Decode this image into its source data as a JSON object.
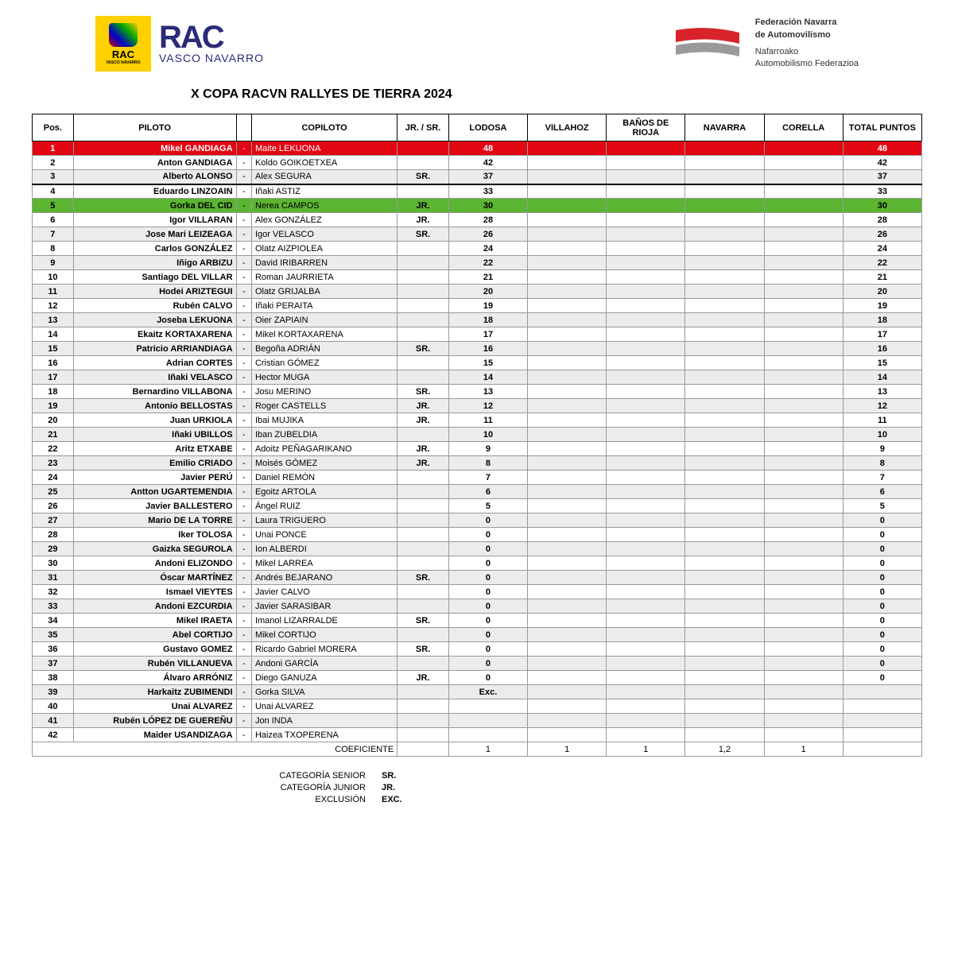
{
  "logos": {
    "rac_small_line1": "RAC",
    "rac_small_line2": "VASCO NAVARRO",
    "rac_big": "RAC",
    "rac_sub": "VASCO NAVARRO",
    "fed_line1": "Federación Navarra",
    "fed_line2": "de Automovilismo",
    "fed_line3": "Nafarroako",
    "fed_line4": "Automobilismo Federazioa"
  },
  "title": "X COPA RACVN RALLYES DE TIERRA 2024",
  "columns": {
    "pos": "Pos.",
    "piloto": "PILOTO",
    "copiloto": "COPILOTO",
    "jrsr": "JR. / SR.",
    "stages": [
      "LODOSA",
      "VILLAHOZ",
      "BAÑOS DE RIOJA",
      "NAVARRA",
      "CORELLA"
    ],
    "total": "TOTAL PUNTOS"
  },
  "highlight_colors": {
    "red": "#e30613",
    "green": "#5bb531",
    "alt": "#ececec"
  },
  "rows": [
    {
      "pos": "1",
      "piloto": "Mikel GANDIAGA",
      "copiloto": "Maite LEKUONA",
      "jrsr": "",
      "s": [
        "48",
        "",
        "",
        "",
        ""
      ],
      "total": "48",
      "hl": "red"
    },
    {
      "pos": "2",
      "piloto": "Anton GANDIAGA",
      "copiloto": "Koldo GOIKOETXEA",
      "jrsr": "",
      "s": [
        "42",
        "",
        "",
        "",
        ""
      ],
      "total": "42"
    },
    {
      "pos": "3",
      "piloto": "Alberto ALONSO",
      "copiloto": "Alex SEGURA",
      "jrsr": "SR.",
      "s": [
        "37",
        "",
        "",
        "",
        ""
      ],
      "total": "37",
      "alt": true,
      "podium_end": true
    },
    {
      "pos": "4",
      "piloto": "Eduardo LINZOAIN",
      "copiloto": "Iñaki ASTIZ",
      "jrsr": "",
      "s": [
        "33",
        "",
        "",
        "",
        ""
      ],
      "total": "33"
    },
    {
      "pos": "5",
      "piloto": "Gorka DEL CID",
      "copiloto": "Nerea CAMPOS",
      "jrsr": "JR.",
      "s": [
        "30",
        "",
        "",
        "",
        ""
      ],
      "total": "30",
      "hl": "green"
    },
    {
      "pos": "6",
      "piloto": "Igor VILLARAN",
      "copiloto": "Alex GONZÁLEZ",
      "jrsr": "JR.",
      "s": [
        "28",
        "",
        "",
        "",
        ""
      ],
      "total": "28"
    },
    {
      "pos": "7",
      "piloto": "Jose Mari LEIZEAGA",
      "copiloto": "Igor VELASCO",
      "jrsr": "SR.",
      "s": [
        "26",
        "",
        "",
        "",
        ""
      ],
      "total": "26",
      "alt": true
    },
    {
      "pos": "8",
      "piloto": "Carlos GONZÁLEZ",
      "copiloto": "Olatz AIZPIOLEA",
      "jrsr": "",
      "s": [
        "24",
        "",
        "",
        "",
        ""
      ],
      "total": "24"
    },
    {
      "pos": "9",
      "piloto": "Iñigo ARBIZU",
      "copiloto": "David IRIBARREN",
      "jrsr": "",
      "s": [
        "22",
        "",
        "",
        "",
        ""
      ],
      "total": "22",
      "alt": true
    },
    {
      "pos": "10",
      "piloto": "Santiago DEL VILLAR",
      "copiloto": "Roman JAURRIETA",
      "jrsr": "",
      "s": [
        "21",
        "",
        "",
        "",
        ""
      ],
      "total": "21"
    },
    {
      "pos": "11",
      "piloto": "Hodei ARIZTEGUI",
      "copiloto": "Olatz GRIJALBA",
      "jrsr": "",
      "s": [
        "20",
        "",
        "",
        "",
        ""
      ],
      "total": "20",
      "alt": true
    },
    {
      "pos": "12",
      "piloto": "Rubén CALVO",
      "copiloto": "Iñaki PERAITA",
      "jrsr": "",
      "s": [
        "19",
        "",
        "",
        "",
        ""
      ],
      "total": "19"
    },
    {
      "pos": "13",
      "piloto": "Joseba LEKUONA",
      "copiloto": "Oier ZAPIAIN",
      "jrsr": "",
      "s": [
        "18",
        "",
        "",
        "",
        ""
      ],
      "total": "18",
      "alt": true
    },
    {
      "pos": "14",
      "piloto": "Ekaitz KORTAXARENA",
      "copiloto": "Mikel KORTAXARENA",
      "jrsr": "",
      "s": [
        "17",
        "",
        "",
        "",
        ""
      ],
      "total": "17"
    },
    {
      "pos": "15",
      "piloto": "Patricio ARRIANDIAGA",
      "copiloto": "Begoña ADRIÁN",
      "jrsr": "SR.",
      "s": [
        "16",
        "",
        "",
        "",
        ""
      ],
      "total": "16",
      "alt": true
    },
    {
      "pos": "16",
      "piloto": "Adrian CORTES",
      "copiloto": "Cristian GÓMEZ",
      "jrsr": "",
      "s": [
        "15",
        "",
        "",
        "",
        ""
      ],
      "total": "15"
    },
    {
      "pos": "17",
      "piloto": "Iñaki VELASCO",
      "copiloto": "Hector MUGA",
      "jrsr": "",
      "s": [
        "14",
        "",
        "",
        "",
        ""
      ],
      "total": "14",
      "alt": true
    },
    {
      "pos": "18",
      "piloto": "Bernardino VILLABONA",
      "copiloto": "Josu MERINO",
      "jrsr": "SR.",
      "s": [
        "13",
        "",
        "",
        "",
        ""
      ],
      "total": "13"
    },
    {
      "pos": "19",
      "piloto": "Antonio BELLOSTAS",
      "copiloto": "Roger CASTELLS",
      "jrsr": "JR.",
      "s": [
        "12",
        "",
        "",
        "",
        ""
      ],
      "total": "12",
      "alt": true
    },
    {
      "pos": "20",
      "piloto": "Juan URKIOLA",
      "copiloto": "Ibai MUJIKA",
      "jrsr": "JR.",
      "s": [
        "11",
        "",
        "",
        "",
        ""
      ],
      "total": "11"
    },
    {
      "pos": "21",
      "piloto": "Iñaki UBILLOS",
      "copiloto": "Iban ZUBELDIA",
      "jrsr": "",
      "s": [
        "10",
        "",
        "",
        "",
        ""
      ],
      "total": "10",
      "alt": true
    },
    {
      "pos": "22",
      "piloto": "Aritz ETXABE",
      "copiloto": "Adoitz PEÑAGARIKANO",
      "jrsr": "JR.",
      "s": [
        "9",
        "",
        "",
        "",
        ""
      ],
      "total": "9"
    },
    {
      "pos": "23",
      "piloto": "Emilio CRIADO",
      "copiloto": "Moisés GÓMEZ",
      "jrsr": "JR.",
      "s": [
        "8",
        "",
        "",
        "",
        ""
      ],
      "total": "8",
      "alt": true
    },
    {
      "pos": "24",
      "piloto": "Javier PERÚ",
      "copiloto": "Daniel REMÓN",
      "jrsr": "",
      "s": [
        "7",
        "",
        "",
        "",
        ""
      ],
      "total": "7"
    },
    {
      "pos": "25",
      "piloto": "Antton UGARTEMENDIA",
      "copiloto": "Egoitz ARTOLA",
      "jrsr": "",
      "s": [
        "6",
        "",
        "",
        "",
        ""
      ],
      "total": "6",
      "alt": true
    },
    {
      "pos": "26",
      "piloto": "Javier BALLESTERO",
      "copiloto": "Ángel RUIZ",
      "jrsr": "",
      "s": [
        "5",
        "",
        "",
        "",
        ""
      ],
      "total": "5"
    },
    {
      "pos": "27",
      "piloto": "Mario DE LA TORRE",
      "copiloto": "Laura TRIGUERO",
      "jrsr": "",
      "s": [
        "0",
        "",
        "",
        "",
        ""
      ],
      "total": "0",
      "alt": true
    },
    {
      "pos": "28",
      "piloto": "Iker TOLOSA",
      "copiloto": "Unai PONCE",
      "jrsr": "",
      "s": [
        "0",
        "",
        "",
        "",
        ""
      ],
      "total": "0"
    },
    {
      "pos": "29",
      "piloto": "Gaizka SEGUROLA",
      "copiloto": "Ion ALBERDI",
      "jrsr": "",
      "s": [
        "0",
        "",
        "",
        "",
        ""
      ],
      "total": "0",
      "alt": true
    },
    {
      "pos": "30",
      "piloto": "Andoni ELIZONDO",
      "copiloto": "Mikel LARREA",
      "jrsr": "",
      "s": [
        "0",
        "",
        "",
        "",
        ""
      ],
      "total": "0"
    },
    {
      "pos": "31",
      "piloto": "Óscar MARTÍNEZ",
      "copiloto": "Andrés BEJARANO",
      "jrsr": "SR.",
      "s": [
        "0",
        "",
        "",
        "",
        ""
      ],
      "total": "0",
      "alt": true
    },
    {
      "pos": "32",
      "piloto": "Ismael VIEYTES",
      "copiloto": "Javier CALVO",
      "jrsr": "",
      "s": [
        "0",
        "",
        "",
        "",
        ""
      ],
      "total": "0"
    },
    {
      "pos": "33",
      "piloto": "Andoni EZCURDIA",
      "copiloto": "Javier SARASIBAR",
      "jrsr": "",
      "s": [
        "0",
        "",
        "",
        "",
        ""
      ],
      "total": "0",
      "alt": true
    },
    {
      "pos": "34",
      "piloto": "Mikel IRAETA",
      "copiloto": "Imanol LIZARRALDE",
      "jrsr": "SR.",
      "s": [
        "0",
        "",
        "",
        "",
        ""
      ],
      "total": "0"
    },
    {
      "pos": "35",
      "piloto": "Abel CORTIJO",
      "copiloto": "Mikel CORTIJO",
      "jrsr": "",
      "s": [
        "0",
        "",
        "",
        "",
        ""
      ],
      "total": "0",
      "alt": true
    },
    {
      "pos": "36",
      "piloto": "Gustavo GOMEZ",
      "copiloto": "Ricardo Gabriel MORERA",
      "jrsr": "SR.",
      "s": [
        "0",
        "",
        "",
        "",
        ""
      ],
      "total": "0"
    },
    {
      "pos": "37",
      "piloto": "Rubén VILLANUEVA",
      "copiloto": "Andoni GARCÍA",
      "jrsr": "",
      "s": [
        "0",
        "",
        "",
        "",
        ""
      ],
      "total": "0",
      "alt": true
    },
    {
      "pos": "38",
      "piloto": "Álvaro ARRÓNIZ",
      "copiloto": "Diego GANUZA",
      "jrsr": "JR.",
      "s": [
        "0",
        "",
        "",
        "",
        ""
      ],
      "total": "0"
    },
    {
      "pos": "39",
      "piloto": "Harkaitz ZUBIMENDI",
      "copiloto": "Gorka SILVA",
      "jrsr": "",
      "s": [
        "Exc.",
        "",
        "",
        "",
        ""
      ],
      "total": "",
      "alt": true
    },
    {
      "pos": "40",
      "piloto": "Unai ALVAREZ",
      "copiloto": "Unai ALVAREZ",
      "jrsr": "",
      "s": [
        "",
        "",
        "",
        "",
        ""
      ],
      "total": ""
    },
    {
      "pos": "41",
      "piloto": "Rubén LÓPEZ DE GUEREÑU",
      "copiloto": "Jon INDA",
      "jrsr": "",
      "s": [
        "",
        "",
        "",
        "",
        ""
      ],
      "total": "",
      "alt": true
    },
    {
      "pos": "42",
      "piloto": "Maider USANDIZAGA",
      "copiloto": "Haizea TXOPERENA",
      "jrsr": "",
      "s": [
        "",
        "",
        "",
        "",
        ""
      ],
      "total": ""
    }
  ],
  "coef": {
    "label": "COEFICIENTE",
    "values": [
      "1",
      "1",
      "1",
      "1,2",
      "1"
    ]
  },
  "legend": [
    {
      "label": "CATEGORÍA SENIOR",
      "code": "SR."
    },
    {
      "label": "CATEGORÍA JUNIOR",
      "code": "JR."
    },
    {
      "label": "EXCLUSIÓN",
      "code": "EXC."
    }
  ]
}
